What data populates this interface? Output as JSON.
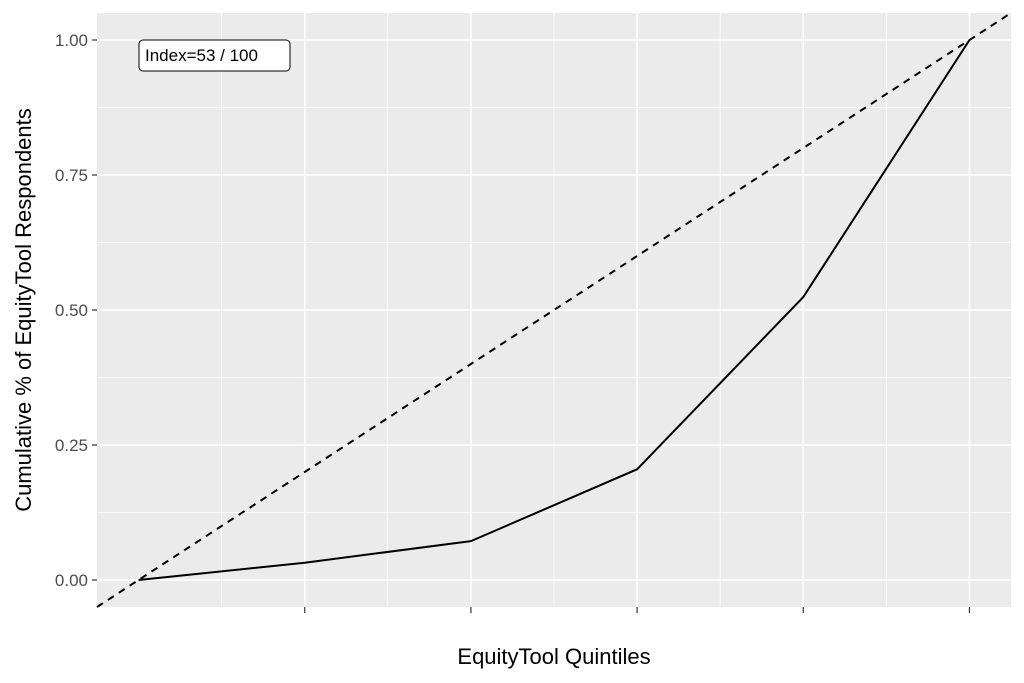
{
  "chart_data": {
    "type": "line",
    "xlabel": "EquityTool Quintiles",
    "ylabel": "Cumulative % of EquityTool Respondents",
    "xlim": [
      -0.25,
      5.25
    ],
    "ylim": [
      -0.05,
      1.05
    ],
    "y_ticks": [
      0.0,
      0.25,
      0.5,
      0.75,
      1.0
    ],
    "y_tick_labels": [
      "0.00",
      "0.25",
      "0.50",
      "0.75",
      "1.00"
    ],
    "x_ticks": [
      1,
      2,
      3,
      4,
      5
    ],
    "grid": true,
    "series": [
      {
        "style": "solid",
        "color": "#000000",
        "x": [
          0,
          1,
          2,
          3,
          4,
          5
        ],
        "y": [
          0.0,
          0.032,
          0.072,
          0.205,
          0.524,
          1.0
        ]
      },
      {
        "style": "dashed",
        "color": "#000000",
        "x": [
          -0.25,
          5.25
        ],
        "y": [
          -0.05,
          1.05
        ]
      }
    ],
    "annotation": {
      "text": "Index=53 / 100"
    },
    "panel_color": "#ebebeb",
    "grid_color": "#ffffff"
  }
}
